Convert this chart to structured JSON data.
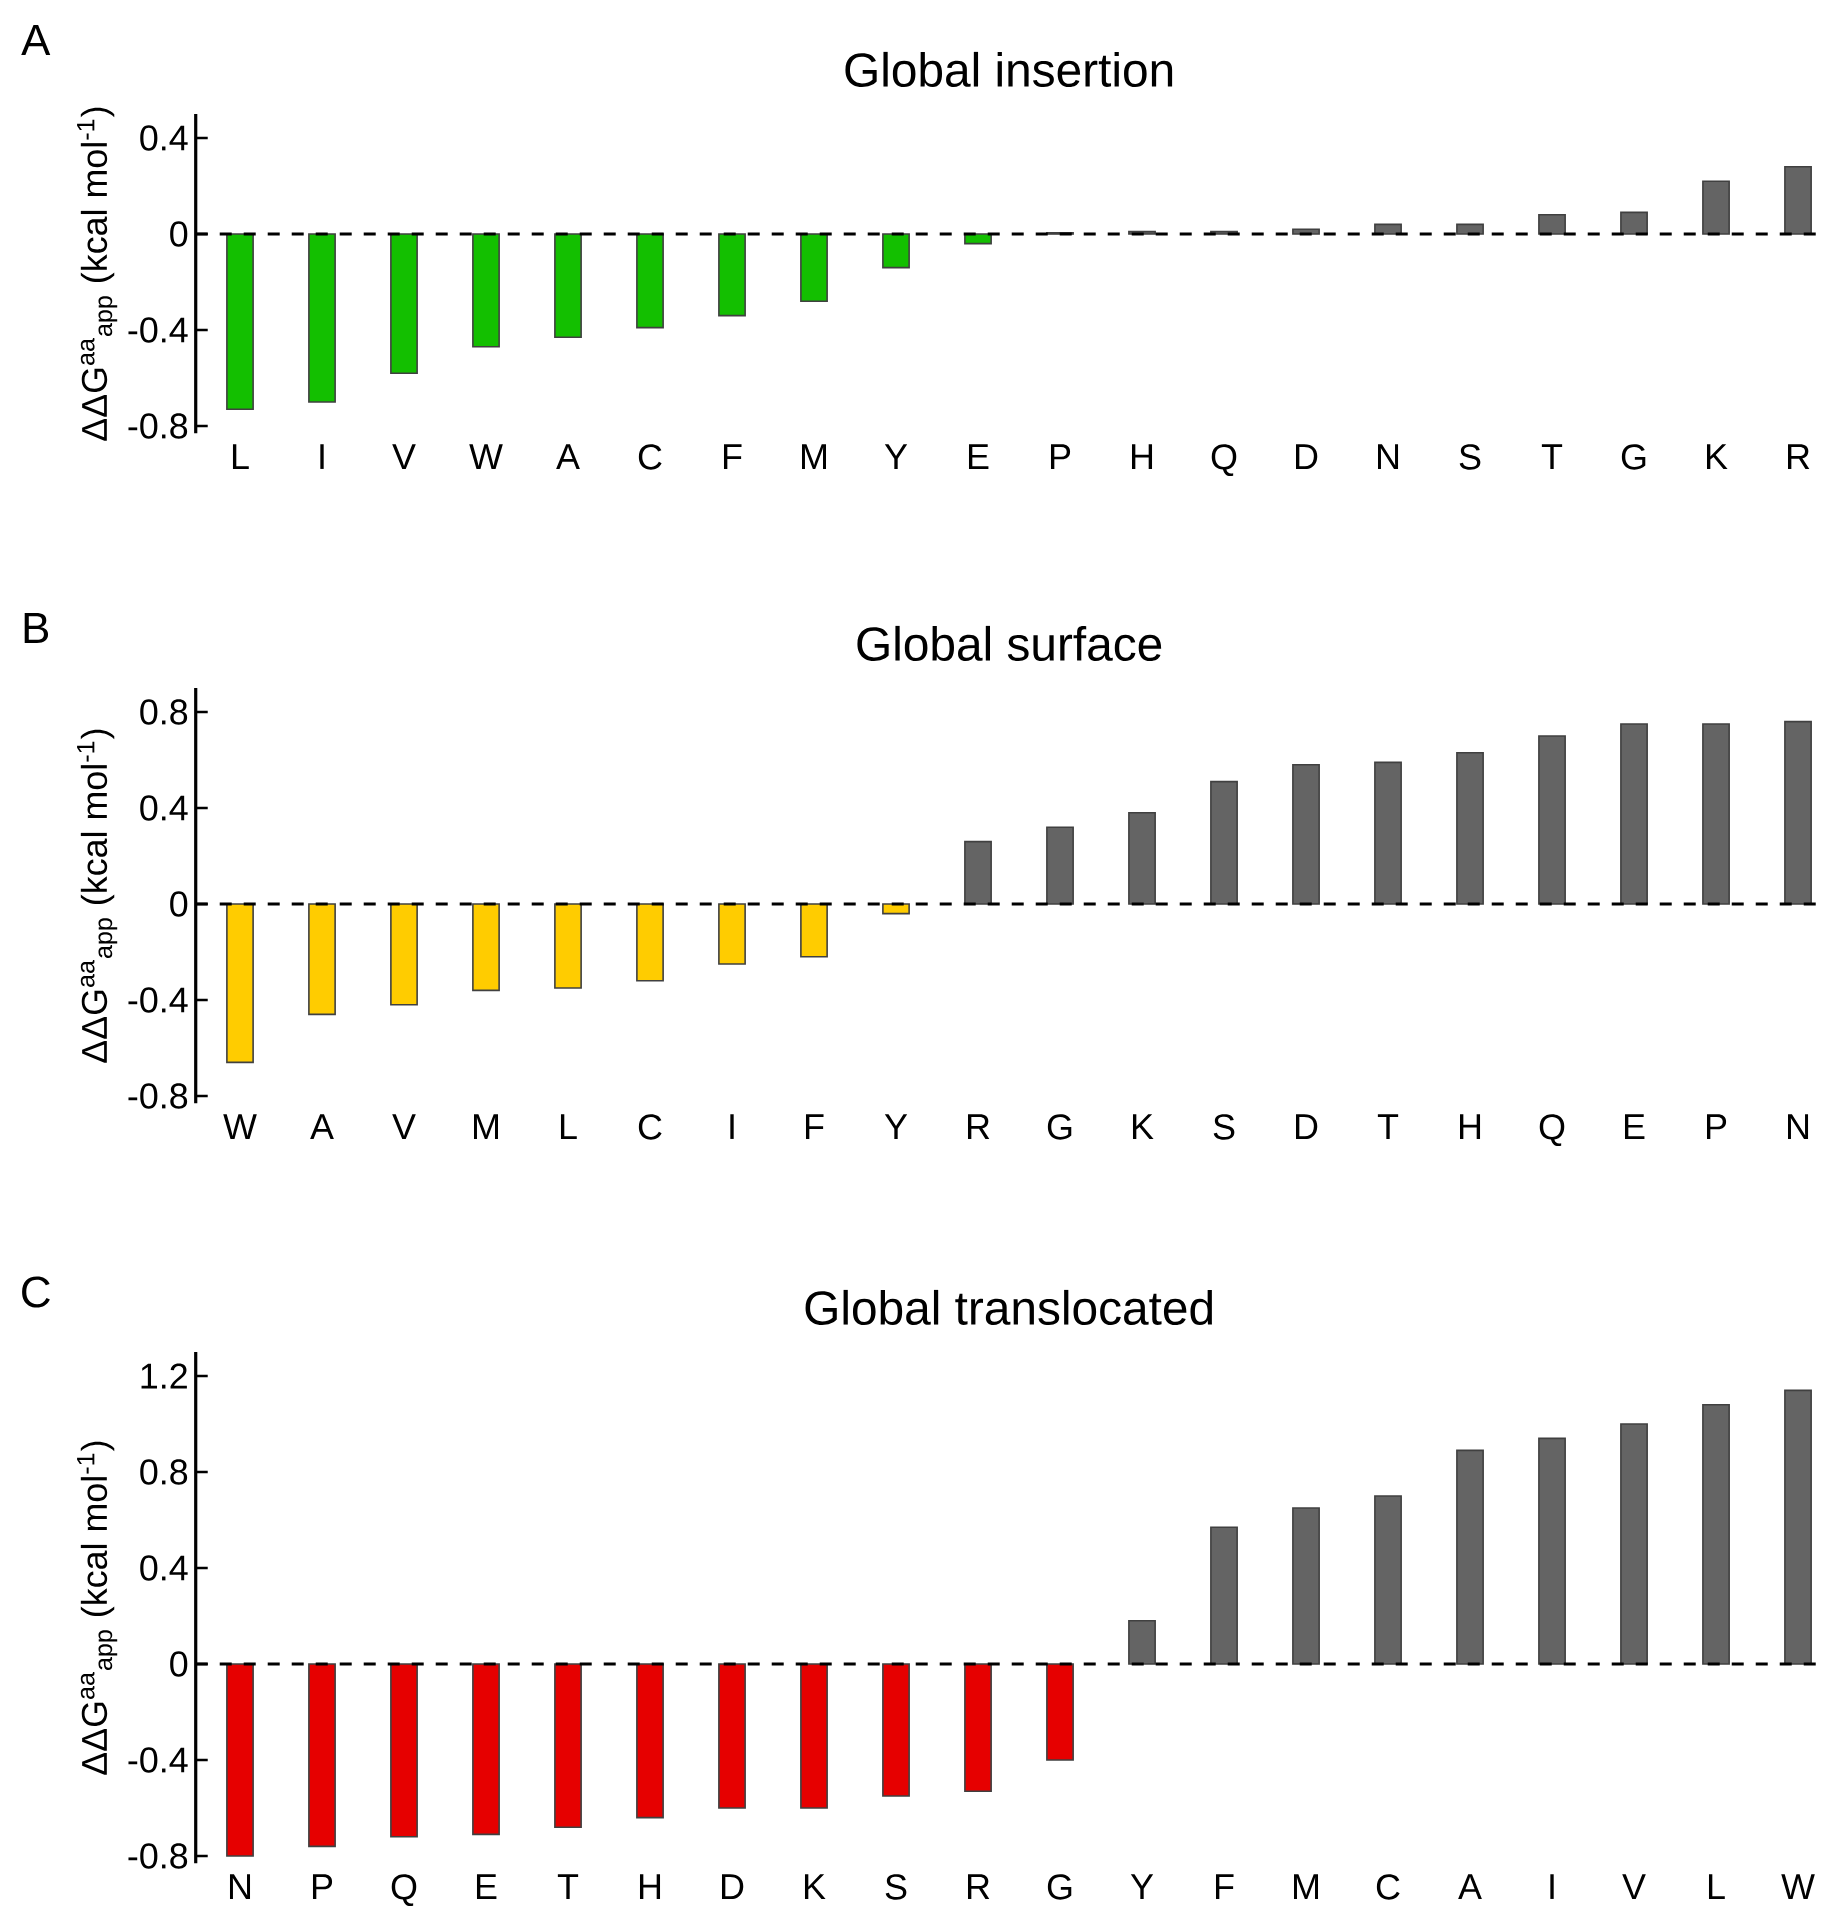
{
  "chart_data": [
    {
      "type": "bar",
      "title": "Global insertion",
      "ylabel": "ΔΔG$^{aa}$$_{app}$ (kcal mol$^{-1}$)",
      "categories": [
        "L",
        "I",
        "V",
        "W",
        "A",
        "C",
        "F",
        "M",
        "Y",
        "E",
        "P",
        "H",
        "Q",
        "D",
        "N",
        "S",
        "T",
        "G",
        "K",
        "R"
      ],
      "values": [
        -0.73,
        -0.7,
        -0.58,
        -0.47,
        -0.43,
        -0.39,
        -0.34,
        -0.28,
        -0.14,
        -0.04,
        0.005,
        0.01,
        0.01,
        0.02,
        0.04,
        0.04,
        0.08,
        0.09,
        0.22,
        0.28
      ],
      "colors": [
        "#13bf00",
        "#13bf00",
        "#13bf00",
        "#13bf00",
        "#13bf00",
        "#13bf00",
        "#13bf00",
        "#13bf00",
        "#13bf00",
        "#13bf00",
        "#646464",
        "#646464",
        "#646464",
        "#646464",
        "#646464",
        "#646464",
        "#646464",
        "#646464",
        "#646464",
        "#646464"
      ],
      "ylim": [
        -0.83,
        0.5
      ],
      "yticks": [
        -0.8,
        -0.4,
        0,
        0.4
      ],
      "ref_lines": [
        {
          "axis": "y",
          "value": 0,
          "color": "#000000",
          "line_style": "dashed"
        }
      ],
      "annotations": [
        "A"
      ]
    },
    {
      "type": "bar",
      "title": "Global surface",
      "ylabel": "ΔΔG$^{aa}$$_{app}$ (kcal mol$^{-1}$)",
      "categories": [
        "W",
        "A",
        "V",
        "M",
        "L",
        "C",
        "I",
        "F",
        "Y",
        "R",
        "G",
        "K",
        "S",
        "D",
        "T",
        "H",
        "Q",
        "E",
        "P",
        "N"
      ],
      "values": [
        -0.66,
        -0.46,
        -0.42,
        -0.36,
        -0.35,
        -0.32,
        -0.25,
        -0.22,
        -0.04,
        0.26,
        0.32,
        0.38,
        0.51,
        0.58,
        0.59,
        0.63,
        0.7,
        0.75,
        0.75,
        0.76
      ],
      "colors": [
        "#ffcc00",
        "#ffcc00",
        "#ffcc00",
        "#ffcc00",
        "#ffcc00",
        "#ffcc00",
        "#ffcc00",
        "#ffcc00",
        "#ffcc00",
        "#646464",
        "#646464",
        "#646464",
        "#646464",
        "#646464",
        "#646464",
        "#646464",
        "#646464",
        "#646464",
        "#646464",
        "#646464"
      ],
      "ylim": [
        -0.83,
        0.9
      ],
      "yticks": [
        -0.8,
        -0.4,
        0,
        0.4,
        0.8
      ],
      "ref_lines": [
        {
          "axis": "y",
          "value": 0,
          "color": "#000000",
          "line_style": "dashed"
        }
      ],
      "annotations": [
        "B"
      ]
    },
    {
      "type": "bar",
      "title": "Global translocated",
      "ylabel": "ΔΔG$^{aa}$$_{app}$ (kcal mol$^{-1}$)",
      "categories": [
        "N",
        "P",
        "Q",
        "E",
        "T",
        "H",
        "D",
        "K",
        "S",
        "R",
        "G",
        "Y",
        "F",
        "M",
        "C",
        "A",
        "I",
        "V",
        "L",
        "W"
      ],
      "values": [
        -0.8,
        -0.76,
        -0.72,
        -0.71,
        -0.68,
        -0.64,
        -0.6,
        -0.6,
        -0.55,
        -0.53,
        -0.4,
        0.18,
        0.57,
        0.65,
        0.7,
        0.89,
        0.94,
        1.0,
        1.08,
        1.14
      ],
      "colors": [
        "#e60000",
        "#e60000",
        "#e60000",
        "#e60000",
        "#e60000",
        "#e60000",
        "#e60000",
        "#e60000",
        "#e60000",
        "#e60000",
        "#e60000",
        "#646464",
        "#646464",
        "#646464",
        "#646464",
        "#646464",
        "#646464",
        "#646464",
        "#646464",
        "#646464"
      ],
      "ylim": [
        -0.83,
        1.3
      ],
      "yticks": [
        -0.8,
        -0.4,
        0,
        0.4,
        0.8,
        1.2
      ],
      "ref_lines": [
        {
          "axis": "y",
          "value": 0,
          "color": "#000000",
          "line_style": "dashed"
        }
      ],
      "annotations": [
        "C"
      ]
    }
  ]
}
